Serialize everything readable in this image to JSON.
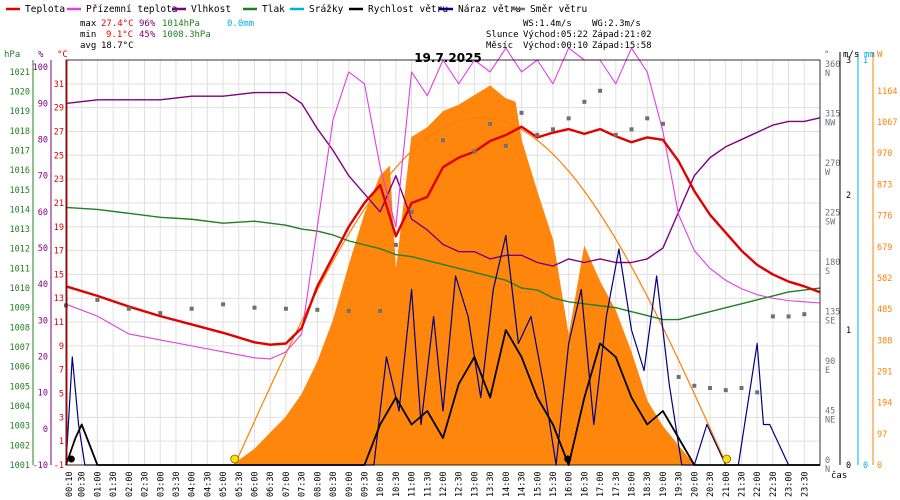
{
  "legend": [
    {
      "label": "Teplota",
      "color": "#e00000"
    },
    {
      "label": "Přízemní teplota",
      "color": "#e040e0"
    },
    {
      "label": "Vlhkost",
      "color": "#800080"
    },
    {
      "label": "Tlak",
      "color": "#208020"
    },
    {
      "label": "Srážky",
      "color": "#00b0e0"
    },
    {
      "label": "Rychlost větru",
      "color": "#000000"
    },
    {
      "label": "Náraz větru",
      "color": "#000080"
    },
    {
      "label": "Směr větru",
      "color": "#707070"
    }
  ],
  "stats": {
    "max_label": "max",
    "max_temp": "27.4°C",
    "max_hum": "96%",
    "max_press": "1014hPa",
    "max_rain": "0.0mm",
    "min_label": "min",
    "min_temp": "9.1°C",
    "min_hum": "45%",
    "min_press": "1008.3hPa",
    "avg_label": "avg",
    "avg_temp": "18.7°C"
  },
  "wind_info": {
    "ws": "WS:1.4m/s",
    "wg": "WG:2.3m/s"
  },
  "sun_info": {
    "sun_label": "Slunce",
    "sunrise": "Východ:05:22",
    "sunset": "Západ:21:02"
  },
  "moon_info": {
    "moon_label": "Měsíc",
    "moonrise": "Východ:00:10",
    "moonset": "Západ:15:58"
  },
  "title": "19.7.2025",
  "axis_units": {
    "hpa": "hPa",
    "pct": "%",
    "degc": "°C",
    "deg": "°",
    "ms": "m/s",
    "mm": "mm",
    "w": "W",
    "cas": "čas"
  },
  "colors": {
    "temp": "#e00000",
    "ground": "#e040e0",
    "humidity": "#800080",
    "pressure": "#208020",
    "rain": "#00b0e0",
    "wind": "#000000",
    "gust": "#000080",
    "dir": "#707070",
    "solar": "#ff8000",
    "grid": "#e0e0e0"
  },
  "chart_data": {
    "type": "line",
    "title": "19.7.2025",
    "x_labels": [
      "00:10",
      "00:30",
      "01:00",
      "01:30",
      "02:00",
      "02:30",
      "03:00",
      "03:30",
      "04:00",
      "04:30",
      "05:00",
      "05:30",
      "06:00",
      "06:30",
      "07:00",
      "07:30",
      "08:00",
      "08:30",
      "09:00",
      "09:30",
      "10:00",
      "10:30",
      "11:00",
      "11:30",
      "12:00",
      "12:30",
      "13:00",
      "13:30",
      "14:00",
      "14:30",
      "15:00",
      "15:30",
      "16:00",
      "16:30",
      "17:00",
      "17:30",
      "18:00",
      "18:30",
      "19:00",
      "19:30",
      "20:00",
      "20:30",
      "21:00",
      "21:30",
      "22:00",
      "22:30",
      "23:00",
      "23:30"
    ],
    "axes": {
      "pressure": {
        "unit": "hPa",
        "ticks": [
          1001,
          1002,
          1003,
          1004,
          1005,
          1006,
          1007,
          1008,
          1009,
          1010,
          1011,
          1012,
          1013,
          1014,
          1015,
          1016,
          1017,
          1018,
          1019,
          1020,
          1021
        ],
        "range": [
          1001,
          1021.6
        ]
      },
      "humidity": {
        "unit": "%",
        "ticks": [
          -10,
          0,
          10,
          20,
          30,
          40,
          50,
          60,
          70,
          80,
          90,
          100
        ],
        "range": [
          -10,
          102
        ]
      },
      "temperature": {
        "unit": "°C",
        "ticks": [
          -1,
          1,
          3,
          5,
          7,
          9,
          11,
          13,
          15,
          17,
          19,
          21,
          23,
          25,
          27,
          29,
          31
        ],
        "range": [
          -1,
          33
        ]
      },
      "direction": {
        "unit": "°",
        "ticks": [
          0,
          45,
          90,
          135,
          180,
          225,
          270,
          315,
          360
        ],
        "labels": [
          "N",
          "NE",
          "E",
          "SE",
          "S",
          "SW",
          "W",
          "NW",
          "N"
        ],
        "range": [
          0,
          368
        ]
      },
      "wind": {
        "unit": "m/s",
        "ticks": [
          0,
          1,
          2,
          3
        ],
        "range": [
          0,
          3
        ]
      },
      "rain": {
        "unit": "mm",
        "ticks": [
          0,
          1
        ],
        "range": [
          0,
          1
        ]
      },
      "solar": {
        "unit": "W",
        "ticks": [
          0,
          97,
          194,
          291,
          388,
          485,
          582,
          679,
          776,
          873,
          970,
          1067,
          1164
        ],
        "range": [
          0,
          1260
        ]
      }
    },
    "x_range_hours": [
      0,
      24
    ],
    "series": [
      {
        "name": "Teplota",
        "axis": "temperature",
        "x_hours": [
          0,
          1,
          2,
          3,
          4,
          5,
          6,
          6.5,
          7,
          7.5,
          8,
          8.5,
          9,
          9.5,
          10,
          10.5,
          11,
          11.5,
          12,
          12.5,
          13,
          13.5,
          14,
          14.5,
          15,
          15.5,
          16,
          16.5,
          17,
          17.5,
          18,
          18.5,
          19,
          19.5,
          20,
          20.5,
          21,
          21.5,
          22,
          22.5,
          23,
          23.5,
          24
        ],
        "values": [
          14,
          13.2,
          12.3,
          11.5,
          10.8,
          10.1,
          9.3,
          9.1,
          9.2,
          10.5,
          14,
          16.5,
          19,
          21,
          22.5,
          18.2,
          21,
          21.5,
          24,
          24.8,
          25.3,
          26.2,
          26.7,
          27.4,
          26.5,
          26.9,
          27.2,
          26.8,
          27.2,
          26.6,
          26.1,
          26.5,
          26.3,
          24.5,
          22,
          20,
          18.5,
          17,
          15.8,
          15,
          14.4,
          14,
          13.5
        ]
      },
      {
        "name": "Přízemní teplota",
        "axis": "temperature",
        "x_hours": [
          0,
          1,
          2,
          3,
          4,
          5,
          6,
          6.5,
          7,
          7.5,
          8,
          8.5,
          9,
          9.5,
          10,
          10.5,
          11,
          11.5,
          12,
          12.5,
          13,
          13.5,
          14,
          14.5,
          15,
          15.5,
          16,
          16.5,
          17,
          17.5,
          18,
          18.5,
          19,
          19.5,
          20,
          20.5,
          21,
          21.5,
          22,
          22.5,
          23,
          23.5,
          24
        ],
        "values": [
          12.5,
          11.5,
          10,
          9.5,
          9,
          8.5,
          8,
          7.9,
          8.5,
          10,
          19,
          28,
          32,
          31,
          24,
          19,
          32,
          30,
          33,
          31,
          33,
          32,
          34,
          32,
          33,
          31,
          34,
          33,
          33,
          31,
          34,
          32,
          27,
          20,
          17,
          15.5,
          14.5,
          13.8,
          13.3,
          13,
          12.8,
          12.7,
          12.6
        ]
      },
      {
        "name": "Vlhkost",
        "axis": "humidity",
        "x_hours": [
          0,
          1,
          2,
          3,
          4,
          5,
          6,
          6.5,
          7,
          7.5,
          8,
          8.5,
          9,
          9.5,
          10,
          10.5,
          11,
          11.5,
          12,
          12.5,
          13,
          13.5,
          14,
          14.5,
          15,
          15.5,
          16,
          16.5,
          17,
          17.5,
          18,
          18.5,
          19,
          19.5,
          20,
          20.5,
          21,
          21.5,
          22,
          22.5,
          23,
          23.5,
          24
        ],
        "values": [
          90,
          91,
          91,
          91,
          92,
          92,
          93,
          93,
          93,
          90,
          83,
          77,
          70,
          65,
          60,
          70,
          58,
          55,
          51,
          49,
          49,
          47,
          48,
          48,
          46,
          45,
          47,
          46,
          47,
          46,
          46,
          47,
          50,
          60,
          70,
          75,
          78,
          80,
          82,
          84,
          85,
          85,
          86
        ]
      },
      {
        "name": "Tlak",
        "axis": "pressure",
        "x_hours": [
          0,
          1,
          2,
          3,
          4,
          5,
          6,
          6.5,
          7,
          7.5,
          8,
          8.5,
          9,
          9.5,
          10,
          10.5,
          11,
          11.5,
          12,
          12.5,
          13,
          13.5,
          14,
          14.5,
          15,
          15.5,
          16,
          16.5,
          17,
          17.5,
          18,
          18.5,
          19,
          19.5,
          20,
          20.5,
          21,
          21.5,
          22,
          22.5,
          23,
          23.5,
          24
        ],
        "values": [
          1014.1,
          1014,
          1013.8,
          1013.6,
          1013.5,
          1013.3,
          1013.4,
          1013.3,
          1013.2,
          1013,
          1012.9,
          1012.7,
          1012.4,
          1012.2,
          1012,
          1011.7,
          1011.6,
          1011.4,
          1011.2,
          1011,
          1010.8,
          1010.6,
          1010.4,
          1010,
          1009.9,
          1009.5,
          1009.3,
          1009.2,
          1009.1,
          1009,
          1008.8,
          1008.6,
          1008.4,
          1008.4,
          1008.6,
          1008.8,
          1009,
          1009.2,
          1009.4,
          1009.6,
          1009.8,
          1009.9,
          1010
        ]
      },
      {
        "name": "Rychlost větru",
        "axis": "wind",
        "x_hours": [
          0,
          0.3,
          0.5,
          1,
          3,
          6,
          8,
          9,
          9.5,
          10,
          10.5,
          11,
          11.5,
          12,
          12.5,
          13,
          13.5,
          14,
          14.5,
          15,
          15.5,
          16,
          16.5,
          17,
          17.5,
          18,
          18.5,
          19,
          19.5,
          20,
          22,
          24
        ],
        "values": [
          0,
          0.2,
          0.3,
          0,
          0,
          0,
          0,
          0,
          0,
          0.3,
          0.5,
          0.3,
          0.4,
          0.2,
          0.6,
          0.8,
          0.5,
          1,
          0.8,
          0.5,
          0.3,
          0,
          0.5,
          0.9,
          0.8,
          0.5,
          0.3,
          0.4,
          0.2,
          0,
          0,
          0
        ]
      },
      {
        "name": "Náraz větru",
        "axis": "wind",
        "x_hours": [
          0,
          0.2,
          0.4,
          0.6,
          9.8,
          10.2,
          10.6,
          11,
          11.3,
          11.7,
          12,
          12.4,
          12.8,
          13.2,
          13.6,
          14,
          14.4,
          14.8,
          15.2,
          15.6,
          16,
          16.4,
          16.8,
          17.2,
          17.6,
          18,
          18.4,
          18.8,
          19.2,
          19.6,
          20,
          20.4,
          21,
          21.4,
          22,
          22.2,
          22.4,
          23,
          24
        ],
        "values": [
          0,
          0.8,
          0.3,
          0,
          0,
          0.8,
          0.4,
          1.3,
          0.3,
          1.1,
          0.4,
          1.4,
          1.1,
          0.5,
          1.3,
          1.7,
          0.9,
          1.1,
          0.6,
          0,
          0.9,
          1.3,
          0.3,
          1.1,
          1.6,
          1,
          0.7,
          1.4,
          0.6,
          0,
          0,
          0.3,
          0,
          0,
          0.9,
          0.3,
          0.3,
          0,
          0
        ]
      },
      {
        "name": "Směr větru",
        "axis": "direction",
        "x_hours": [
          0,
          1,
          2,
          3,
          4,
          5,
          6,
          7,
          8,
          9,
          10,
          10.5,
          11,
          12,
          13,
          13.5,
          14,
          14.5,
          15,
          15.5,
          16,
          16.5,
          17,
          17.5,
          18,
          18.5,
          19,
          19.5,
          20,
          20.5,
          21,
          21.5,
          22,
          22.5,
          23,
          23.5
        ],
        "values": [
          145,
          150,
          142,
          138,
          142,
          146,
          143,
          142,
          141,
          140,
          140,
          200,
          230,
          295,
          285,
          310,
          290,
          320,
          300,
          305,
          315,
          330,
          340,
          300,
          305,
          315,
          310,
          80,
          72,
          70,
          68,
          70,
          66,
          135,
          135,
          137
        ]
      },
      {
        "name": "Solar",
        "axis": "solar",
        "x_hours": [
          0,
          5.3,
          6,
          6.5,
          7,
          7.5,
          8,
          8.5,
          9,
          9.5,
          10,
          10.3,
          10.5,
          11,
          11.5,
          12,
          12.5,
          13,
          13.5,
          14,
          14.3,
          14.5,
          15,
          15.5,
          16,
          16.5,
          17,
          17.5,
          18,
          18.5,
          19,
          19.5,
          20,
          24
        ],
        "values": [
          0,
          0,
          50,
          100,
          150,
          220,
          320,
          450,
          620,
          780,
          900,
          930,
          600,
          1020,
          1050,
          1100,
          1120,
          1150,
          1180,
          1140,
          1130,
          1010,
          850,
          700,
          400,
          680,
          570,
          480,
          350,
          200,
          120,
          60,
          0,
          0
        ]
      }
    ]
  }
}
